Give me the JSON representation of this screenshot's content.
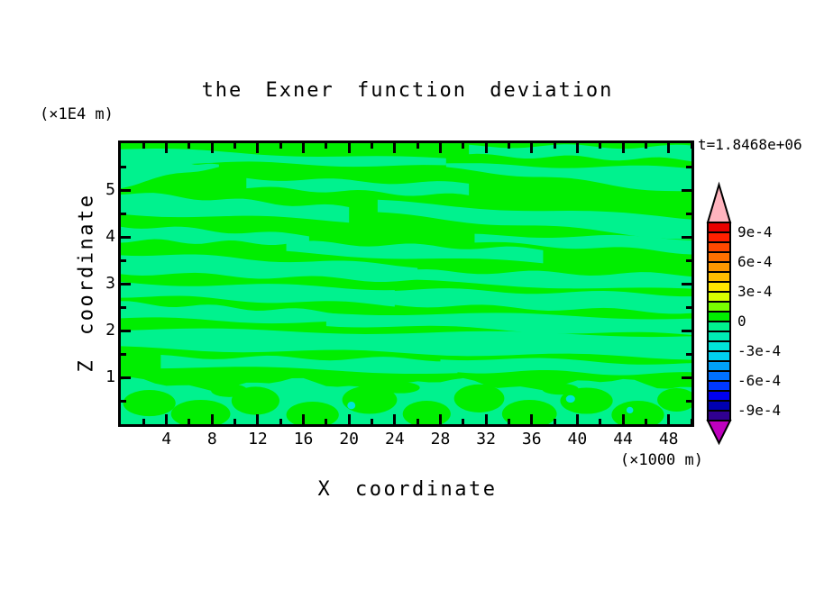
{
  "title": "the Exner function deviation",
  "time_label": "t=1.8468e+06",
  "unit_labels": {
    "z_unit": "(×1E4 m)",
    "x_unit": "(×1000 m)"
  },
  "axes": {
    "x": {
      "label": "X coordinate",
      "min": 0,
      "max": 50,
      "major_ticks": [
        4,
        8,
        12,
        16,
        20,
        24,
        28,
        32,
        36,
        40,
        44,
        48
      ],
      "minor_ticks": [
        2,
        6,
        10,
        14,
        18,
        22,
        26,
        30,
        34,
        38,
        42,
        46,
        50
      ]
    },
    "z": {
      "label": "Z coordinate",
      "min": 0,
      "max": 6,
      "major_ticks": [
        1,
        2,
        3,
        4,
        5
      ],
      "minor_ticks": [
        0.5,
        1.5,
        2.5,
        3.5,
        4.5,
        5.5
      ]
    }
  },
  "colorbar": {
    "labels": [
      "9e-4",
      "6e-4",
      "3e-4",
      "0",
      "-3e-4",
      "-6e-4",
      "-9e-4"
    ],
    "top_value": 0.001,
    "bottom_value": -0.001,
    "cell_step": 0.0001,
    "cell_colors_top_to_bottom": [
      "#E80000",
      "#FF2000",
      "#FF4800",
      "#FF7000",
      "#FF9800",
      "#FFBE00",
      "#FFE600",
      "#D8FF00",
      "#78FF00",
      "#00EE00",
      "#00F28E",
      "#00ECB4",
      "#00E4D8",
      "#00D0F0",
      "#00A0F8",
      "#0070FF",
      "#0038FF",
      "#0000F0",
      "#0000B0",
      "#300090"
    ],
    "over_arrow_color": "#FFB4BE",
    "under_arrow_color": "#BE00BE"
  },
  "chart_data": {
    "type": "contour",
    "title": "the Exner function deviation",
    "xlabel": "X coordinate",
    "ylabel": "Z coordinate",
    "x_units": "×1000 m",
    "z_units": "×1E4 m",
    "x_range": [
      0,
      50
    ],
    "z_range": [
      0,
      6
    ],
    "time": "t=1.8468e+06",
    "contour_interval": 0.0001,
    "value_range": [
      -0.001,
      0.001
    ],
    "field_summary": "Nearly-zero Exner deviation: background level 0..+1e-4 (green) with wavy horizontal streaks of -1e-4..0 (spring green); mottled mixed region below z≈0.9 with a few -2e-4 specks (turquoise)",
    "colors": {
      "positive_band": "#00EE00",
      "negative_band": "#00F28E",
      "speck_band": "#00E4D8"
    },
    "negative_streaks": [
      {
        "x0": 0,
        "x1": 28.5,
        "z0": 5.74,
        "z1": 5.58,
        "h0": 0.13,
        "h1": 0.08
      },
      {
        "x0": 30.5,
        "x1": 50,
        "z0": 5.84,
        "z1": 5.78,
        "h0": 0.1,
        "h1": 0.14
      },
      {
        "x0": 0,
        "x1": 8.6,
        "z0": 5.38,
        "z1": 5.52,
        "h0": 0.3,
        "h1": 0.02
      },
      {
        "x0": 28.5,
        "x1": 50,
        "z0": 5.52,
        "z1": 5.2,
        "h0": 0.04,
        "h1": 0.26
      },
      {
        "x0": 11,
        "x1": 30.5,
        "z0": 5.15,
        "z1": 5.0,
        "h0": 0.1,
        "h1": 0.13
      },
      {
        "x0": 0,
        "x1": 20,
        "z0": 4.72,
        "z1": 4.48,
        "h0": 0.22,
        "h1": 0.14
      },
      {
        "x0": 22.5,
        "x1": 50,
        "z0": 4.62,
        "z1": 4.18,
        "h0": 0.13,
        "h1": 0.22
      },
      {
        "x0": 0,
        "x1": 16.5,
        "z0": 4.08,
        "z1": 3.94,
        "h0": 0.16,
        "h1": 0.09
      },
      {
        "x0": 14.5,
        "x1": 37,
        "z0": 3.78,
        "z1": 3.58,
        "h0": 0.11,
        "h1": 0.15
      },
      {
        "x0": 31,
        "x1": 50,
        "z0": 3.96,
        "z1": 3.82,
        "h0": 0.08,
        "h1": 0.15
      },
      {
        "x0": 0,
        "x1": 26,
        "z0": 3.44,
        "z1": 3.22,
        "h0": 0.21,
        "h1": 0.16
      },
      {
        "x0": 25,
        "x1": 50,
        "z0": 3.16,
        "z1": 3.02,
        "h0": 0.11,
        "h1": 0.17
      },
      {
        "x0": 0,
        "x1": 24,
        "z0": 2.88,
        "z1": 2.72,
        "h0": 0.14,
        "h1": 0.18
      },
      {
        "x0": 23,
        "x1": 50,
        "z0": 2.72,
        "z1": 2.58,
        "h0": 0.16,
        "h1": 0.19
      },
      {
        "x0": 0,
        "x1": 19.5,
        "z0": 2.42,
        "z1": 2.28,
        "h0": 0.17,
        "h1": 0.11
      },
      {
        "x0": 18,
        "x1": 50,
        "z0": 2.26,
        "z1": 2.08,
        "h0": 0.13,
        "h1": 0.19
      },
      {
        "x0": 0,
        "x1": 50,
        "z0": 1.82,
        "z1": 1.66,
        "h0": 0.2,
        "h1": 0.24
      },
      {
        "x0": 3.5,
        "x1": 29.5,
        "z0": 1.33,
        "z1": 1.24,
        "h0": 0.11,
        "h1": 0.14
      },
      {
        "x0": 28,
        "x1": 50,
        "z0": 1.28,
        "z1": 1.18,
        "h0": 0.14,
        "h1": 0.11
      }
    ],
    "bottom_mixed_region": {
      "z_top": 0.85,
      "green_blobs": [
        [
          2.5,
          0.45,
          2.3,
          0.28
        ],
        [
          7,
          0.22,
          2.6,
          0.3
        ],
        [
          11.8,
          0.5,
          2.1,
          0.3
        ],
        [
          16.8,
          0.2,
          2.3,
          0.28
        ],
        [
          21.8,
          0.52,
          2.4,
          0.3
        ],
        [
          26.8,
          0.22,
          2.1,
          0.28
        ],
        [
          31.4,
          0.55,
          2.2,
          0.3
        ],
        [
          35.8,
          0.22,
          2.4,
          0.3
        ],
        [
          40.8,
          0.5,
          2.3,
          0.28
        ],
        [
          45.3,
          0.2,
          2.3,
          0.3
        ],
        [
          48.7,
          0.52,
          1.7,
          0.25
        ],
        [
          9.5,
          0.72,
          1.6,
          0.14
        ],
        [
          24.5,
          0.78,
          1.7,
          0.12
        ],
        [
          38.5,
          0.75,
          1.6,
          0.12
        ]
      ],
      "turquoise_specks": [
        [
          20.2,
          0.4,
          0.35,
          0.08
        ],
        [
          39.4,
          0.54,
          0.4,
          0.08
        ],
        [
          44.6,
          0.3,
          0.3,
          0.07
        ]
      ]
    }
  }
}
